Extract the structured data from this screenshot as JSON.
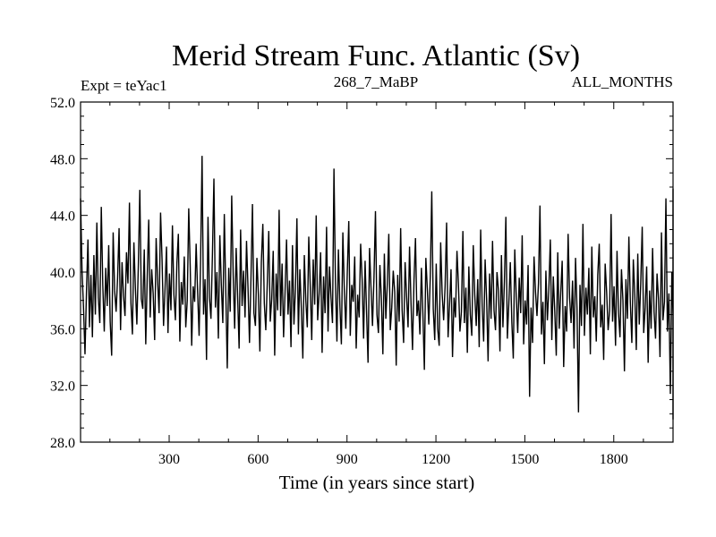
{
  "chart_data": {
    "type": "line",
    "title": "Merid Stream Func. Atlantic (Sv)",
    "experiment_label": "Expt = teYac1",
    "run_label": "268_7_MaBP",
    "period_label": "ALL_MONTHS",
    "xlabel": "Time (in years since start)",
    "ylabel": "",
    "xlim": [
      1,
      2000
    ],
    "ylim": [
      28,
      52
    ],
    "x_ticks": [
      300,
      600,
      900,
      1200,
      1500,
      1800
    ],
    "x_tick_labels": [
      "300",
      "600",
      "900",
      "1200",
      "1500",
      "1800"
    ],
    "y_ticks": [
      28,
      32,
      36,
      40,
      44,
      48,
      52
    ],
    "y_tick_labels": [
      "28.0",
      "32.0",
      "36.0",
      "40.0",
      "44.0",
      "48.0",
      "52.0"
    ],
    "series": [
      {
        "name": "Atlantic meridional streamfunction",
        "color": "#000000",
        "x_start": 1,
        "x_step": 5,
        "values": [
          45.2,
          40.1,
          37.5,
          34.2,
          38.6,
          42.3,
          36.1,
          39.8,
          35.4,
          41.2,
          37.0,
          43.5,
          38.2,
          36.4,
          44.6,
          39.1,
          35.8,
          40.3,
          37.6,
          41.9,
          36.5,
          34.1,
          42.8,
          38.7,
          37.2,
          39.6,
          43.1,
          35.9,
          40.7,
          38.3,
          36.9,
          41.4,
          39.2,
          44.9,
          37.8,
          35.6,
          42.1,
          38.9,
          36.3,
          40.5,
          45.8,
          38.1,
          37.4,
          41.6,
          34.9,
          39.7,
          43.7,
          36.8,
          40.2,
          38.5,
          35.2,
          42.4,
          39.4,
          37.1,
          44.2,
          40.9,
          36.2,
          38.8,
          41.8,
          35.7,
          39.9,
          37.3,
          43.3,
          38.4,
          36.6,
          40.6,
          42.7,
          35.1,
          39.3,
          37.7,
          41.1,
          36.1,
          38.0,
          44.5,
          40.4,
          34.8,
          39.0,
          37.9,
          42.0,
          38.6,
          35.5,
          40.8,
          48.2,
          37.0,
          39.5,
          33.8,
          43.9,
          38.2,
          36.7,
          41.3,
          46.6,
          37.5,
          40.0,
          35.3,
          42.6,
          39.1,
          36.4,
          44.1,
          38.7,
          33.2,
          40.3,
          37.2,
          45.4,
          39.8,
          36.0,
          41.7,
          38.3,
          34.6,
          43.0,
          37.6,
          40.1,
          36.8,
          42.2,
          38.9,
          35.0,
          39.6,
          44.8,
          37.1,
          36.2,
          41.0,
          38.4,
          34.4,
          40.7,
          43.4,
          37.8,
          35.9,
          39.2,
          42.9,
          36.5,
          38.1,
          41.5,
          34.1,
          39.9,
          37.3,
          44.4,
          36.9,
          40.6,
          35.4,
          38.6,
          42.3,
          37.0,
          39.4,
          34.7,
          41.9,
          36.3,
          38.8,
          43.8,
          35.6,
          40.2,
          37.4,
          33.9,
          41.2,
          38.0,
          36.1,
          42.5,
          39.0,
          35.2,
          40.9,
          37.7,
          44.0,
          36.6,
          38.5,
          41.4,
          34.3,
          39.7,
          37.1,
          43.2,
          35.8,
          40.4,
          38.2,
          36.4,
          47.3,
          39.3,
          35.1,
          41.6,
          37.6,
          34.9,
          42.8,
          38.7,
          36.0,
          40.0,
          43.6,
          35.5,
          39.1,
          37.9,
          41.1,
          34.6,
          38.4,
          36.8,
          42.0,
          39.5,
          35.3,
          40.8,
          37.2,
          33.6,
          41.7,
          38.9,
          36.2,
          39.6,
          44.3,
          37.0,
          35.7,
          40.5,
          38.1,
          34.2,
          41.3,
          36.7,
          39.2,
          42.7,
          35.9,
          37.5,
          40.1,
          38.6,
          33.4,
          39.8,
          36.5,
          43.1,
          37.3,
          35.0,
          40.7,
          38.3,
          36.1,
          41.8,
          37.8,
          34.5,
          39.4,
          42.4,
          36.9,
          38.0,
          35.6,
          40.3,
          37.1,
          33.1,
          41.0,
          38.8,
          36.3,
          39.7,
          45.7,
          37.4,
          35.2,
          40.6,
          36.0,
          34.8,
          42.1,
          38.5,
          36.6,
          39.0,
          43.5,
          35.4,
          37.7,
          40.2,
          34.0,
          38.2,
          36.8,
          41.5,
          39.1,
          35.8,
          37.2,
          42.9,
          36.4,
          38.9,
          34.3,
          40.4,
          37.0,
          35.5,
          41.9,
          38.4,
          36.2,
          39.5,
          34.7,
          43.0,
          37.6,
          35.1,
          40.9,
          38.1,
          33.7,
          39.9,
          36.7,
          42.2,
          37.3,
          35.9,
          40.0,
          38.7,
          34.4,
          41.2,
          36.1,
          39.3,
          43.9,
          35.3,
          37.8,
          40.7,
          36.5,
          33.9,
          41.6,
          38.3,
          35.7,
          39.6,
          37.1,
          42.6,
          34.9,
          38.0,
          36.3,
          40.5,
          31.2,
          37.5,
          35.0,
          41.1,
          38.6,
          36.9,
          39.2,
          44.7,
          35.6,
          37.9,
          33.5,
          40.1,
          36.6,
          38.8,
          42.3,
          35.2,
          39.7,
          37.2,
          34.1,
          41.4,
          36.0,
          38.5,
          40.8,
          33.3,
          37.6,
          35.8,
          42.7,
          38.2,
          36.4,
          39.4,
          34.6,
          41.0,
          37.4,
          30.1,
          39.1,
          36.2,
          43.4,
          35.5,
          38.9,
          37.0,
          40.3,
          34.2,
          41.8,
          36.8,
          38.3,
          35.1,
          39.8,
          42.0,
          36.1,
          37.7,
          33.8,
          40.6,
          38.6,
          35.9,
          37.3,
          44.1,
          36.5,
          39.0,
          34.8,
          41.5,
          37.1,
          35.4,
          40.2,
          38.0,
          33.0,
          39.5,
          36.7,
          42.5,
          37.8,
          35.0,
          40.9,
          38.4,
          34.5,
          41.3,
          36.3,
          39.2,
          43.2,
          35.7,
          37.5,
          40.4,
          33.6,
          38.7,
          36.0,
          41.7,
          37.2,
          35.3,
          39.9,
          38.1,
          34.0,
          42.8,
          36.6,
          37.9,
          45.2,
          35.8,
          38.5,
          31.4,
          40.0,
          36.9,
          38.2,
          35.6,
          41.2,
          37.4,
          34.3,
          39.3,
          42.1,
          36.2,
          37.6,
          40.7,
          35.1,
          38.8,
          33.9,
          41.6,
          37.0,
          35.5,
          39.7,
          43.7,
          36.4,
          38.3,
          34.7,
          40.1,
          37.3,
          30.2,
          39.0,
          36.1,
          42.4,
          38.6,
          35.2,
          37.8,
          41.0,
          34.4,
          39.6,
          36.8,
          40.5,
          37.1,
          35.9,
          43.6,
          38.0,
          33.4,
          39.4,
          36.3,
          41.9,
          37.7,
          35.0,
          40.8,
          38.4,
          34.1,
          42.2,
          36.7,
          39.1,
          35.4,
          37.2,
          40.3,
          33.1,
          38.9,
          36.0,
          41.4,
          37.5,
          34.8,
          39.8,
          42.9,
          35.6,
          38.1,
          36.5,
          40.0,
          32.8,
          37.9,
          35.3,
          41.7,
          38.7,
          36.2,
          39.2,
          34.5,
          43.3,
          37.0,
          35.7,
          40.6,
          38.2,
          31.7,
          39.5,
          36.9,
          42.0,
          37.4,
          35.1,
          41.1,
          38.5,
          34.2,
          40.2,
          36.4,
          38.8,
          44.0,
          35.8,
          37.3,
          41.5,
          33.7,
          39.3,
          36.1,
          42.6,
          37.8,
          35.4,
          40.4,
          38.0,
          34.6,
          39.7,
          36.6,
          41.8,
          37.1,
          30.4,
          38.6,
          35.9,
          40.9,
          37.6,
          34.3,
          39.0,
          42.3,
          36.8,
          38.3,
          35.2,
          40.1,
          37.2,
          33.2,
          41.3,
          36.0,
          38.9,
          43.1,
          35.5,
          37.7,
          40.7,
          34.0,
          39.4,
          36.5,
          41.0,
          38.1,
          35.0,
          39.9,
          37.4,
          32.9,
          42.5,
          36.3,
          38.4,
          35.7,
          40.5,
          37.0,
          34.4,
          41.6,
          38.7,
          36.2,
          39.1,
          45.9,
          35.3,
          37.9,
          33.6,
          40.0,
          36.7,
          38.2,
          42.1,
          35.1,
          39.6,
          37.3,
          34.7,
          41.2,
          36.1,
          38.6,
          40.3,
          29.9,
          37.5,
          35.6,
          42.7,
          38.0,
          36.4,
          39.3,
          34.1,
          41.4,
          37.1,
          35.2,
          40.6,
          38.5,
          33.3,
          39.8,
          36.9,
          43.0,
          37.6,
          35.0,
          40.8,
          38.3,
          34.5,
          41.9,
          36.2,
          39.0,
          42.4,
          35.4,
          37.2,
          40.2,
          33.0,
          38.8,
          36.0,
          41.1,
          37.7,
          34.9,
          39.5,
          38.1,
          35.8,
          44.2,
          36.6,
          37.4,
          40.4,
          34.2,
          38.7,
          36.3,
          41.7,
          37.9,
          35.5,
          39.2,
          31.0,
          42.2,
          36.8,
          38.4,
          35.1,
          40.7,
          37.0,
          34.6,
          41.5,
          38.2,
          36.1,
          39.7,
          42.8,
          35.7,
          37.8,
          33.8,
          40.1,
          36.5,
          38.9,
          35.3,
          41.0,
          37.5,
          34.0,
          39.4,
          43.5,
          36.2,
          38.0,
          40.9,
          35.0,
          37.3,
          32.7,
          41.3,
          36.7,
          38.6,
          35.6,
          39.9,
          42.0,
          34.8,
          37.6,
          36.4,
          40.5,
          38.3,
          33.5,
          41.8,
          36.0,
          39.1,
          37.1,
          34.4,
          40.3,
          38.8,
          35.9,
          42.9,
          36.9,
          37.4,
          30.3,
          39.6,
          35.2,
          41.2,
          38.1,
          36.3,
          40.0,
          37.7,
          34.1,
          42.3,
          35.8,
          38.5,
          36.6,
          39.3,
          41.6,
          33.9,
          37.2,
          35.4,
          40.8,
          38.0,
          36.8,
          39.0,
          34.5,
          43.8,
          37.0,
          35.1,
          40.2,
          38.7,
          33.2,
          41.1,
          36.2,
          39.5,
          37.5,
          34.8,
          42.1,
          35.6,
          38.4,
          36.9,
          40.6,
          32.4,
          37.9,
          35.3,
          41.9,
          38.2,
          36.1,
          39.8,
          44.6,
          34.3,
          37.3,
          40.4,
          35.9,
          38.9,
          36.5,
          41.4,
          33.7,
          37.6,
          35.0,
          39.2,
          42.6,
          36.3,
          38.3,
          34.9,
          40.7,
          37.1,
          35.5,
          41.7,
          38.6,
          33.3,
          39.4,
          36.7,
          40.1,
          43.9,
          35.2,
          37.8,
          34.6,
          41.0,
          38.0,
          36.0,
          39.7,
          29.7,
          37.4,
          35.8,
          42.4,
          38.5,
          36.4,
          40.9,
          34.2,
          39.0,
          37.2,
          35.4,
          41.5,
          36.8,
          38.1,
          33.6,
          40.3,
          37.7,
          35.1,
          42.0,
          36.2,
          39.6,
          34.7,
          38.8,
          44.5,
          36.6,
          37.0,
          40.5,
          33.0,
          38.4,
          35.7,
          41.3,
          37.5,
          34.4,
          39.3,
          36.9,
          42.7,
          35.3,
          38.2,
          31.1,
          40.2,
          37.1,
          35.0,
          41.8,
          36.4,
          38.7,
          34.1,
          39.9,
          37.6,
          35.6,
          43.2,
          36.0,
          38.3,
          33.4,
          40.8,
          37.3,
          34.9,
          39.1,
          42.2,
          35.2,
          37.9,
          36.7,
          41.1,
          33.8,
          38.6,
          35.5,
          40.0,
          37.0,
          34.3,
          39.7,
          44.8,
          36.1,
          37.4,
          40.6,
          32.1,
          38.0,
          35.9,
          41.6,
          36.5,
          34.6,
          39.4,
          37.8,
          35.1,
          42.5,
          36.9,
          38.5,
          33.1,
          40.1,
          36.3,
          35.4,
          41.2,
          38.1,
          30.0,
          39.0,
          36.6,
          43.4,
          37.2,
          34.8,
          40.4,
          35.7,
          38.9,
          33.5,
          41.9,
          37.5,
          35.0,
          39.8,
          36.2,
          38.4,
          42.8,
          34.0,
          37.7,
          36.8,
          40.9,
          33.3,
          38.3,
          35.3,
          41.4,
          37.1,
          34.5,
          39.5,
          36.4,
          31.8,
          42.0,
          36.0,
          38.7,
          35.6,
          40.3,
          37.9,
          33.9,
          39.2,
          36.5,
          41.7,
          35.2,
          38.2,
          34.2,
          40.7,
          37.4,
          32.5,
          39.6,
          36.1,
          42.6,
          37.0,
          35.8,
          40.0,
          33.6,
          38.8,
          36.7,
          41.0,
          34.7,
          37.6,
          39.4,
          31.5,
          36.3,
          38.0,
          43.6,
          35.4,
          37.3,
          40.5,
          33.2,
          38.6,
          36.0,
          41.3,
          35.1,
          37.8,
          30.9,
          39.9,
          36.9,
          42.3,
          34.4,
          38.1,
          35.5,
          40.8,
          37.2,
          33.7,
          39.1,
          36.4,
          41.8,
          35.0,
          38.4,
          32.3,
          40.2,
          37.5,
          34.8,
          39.7,
          36.2,
          38.9,
          34.1,
          41.5,
          35.6,
          37.1,
          31.3,
          40.4,
          36.6,
          35.3,
          42.9,
          33.5,
          38.3,
          35.9,
          39.3,
          32.0,
          37.7,
          36.8,
          40.6,
          34.6,
          38.7,
          30.6,
          39.5,
          35.2,
          41.1,
          36.1,
          33.8,
          38.0,
          37.0,
          34.3,
          40.1,
          35.7,
          38.5,
          32.6,
          39.8,
          36.5,
          35.0,
          41.9,
          33.4,
          37.4,
          36.3,
          39.0,
          31.9,
          40.7,
          35.4,
          37.9,
          34.0,
          39.2,
          36.0,
          33.0,
          41.2,
          35.8,
          38.2,
          34.7,
          40.3,
          37.3,
          30.8,
          38.6,
          36.7,
          39.6,
          35.1,
          42.1,
          33.6,
          37.6,
          36.2,
          40.9,
          34.5,
          38.8,
          35.5,
          39.1,
          32.2,
          37.2,
          36.4,
          41.6,
          33.9,
          38.1,
          35.0,
          40.0,
          29.6,
          36.9,
          34.2,
          38.4,
          33.3,
          37.0,
          35.6,
          39.7,
          31.6,
          36.1,
          34.8,
          38.5,
          33.0,
          37.5,
          35.2,
          40.2,
          32.4,
          36.6,
          34.0,
          39.0,
          37.8,
          33.7,
          36.3,
          35.9,
          40.6
        ]
      }
    ]
  }
}
